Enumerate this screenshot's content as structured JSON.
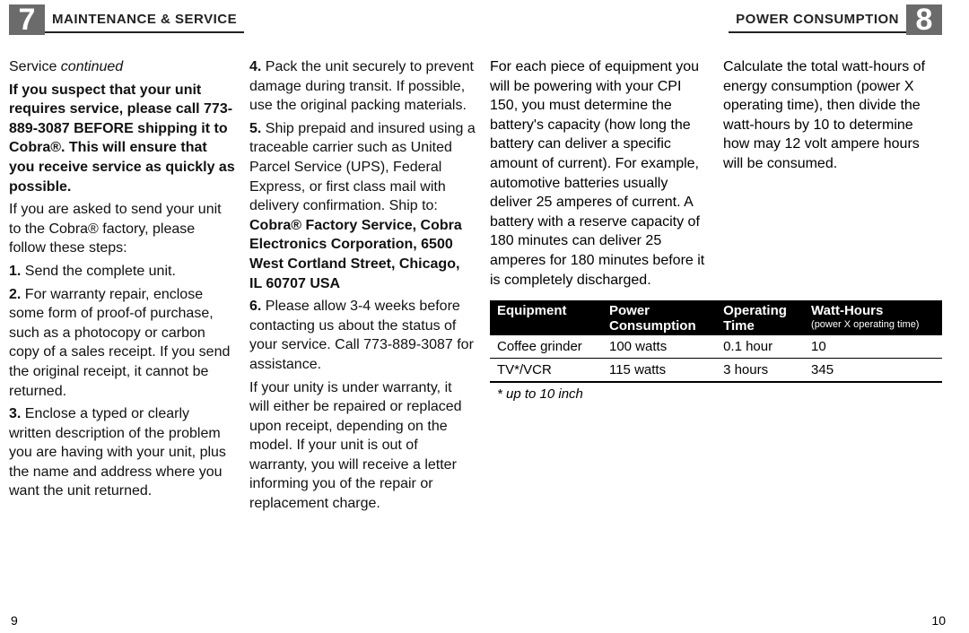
{
  "header": {
    "left_num": "7",
    "left_label": "MAINTENANCE & SERVICE",
    "right_label": "POWER CONSUMPTION",
    "right_num": "8"
  },
  "col1": {
    "subhead_a": "Service ",
    "subhead_b": "continued",
    "p1": "If you suspect that your unit requires service, please call 773-889-3087 BEFORE shipping it to Cobra®. This will ensure that you receive service as quickly as possible.",
    "p2": "If you are asked to send your unit to the Cobra® factory, please follow these steps:",
    "p3": "1. Send the complete unit.",
    "p4": "2. For warranty repair, enclose some form of proof-of purchase, such as a photocopy or carbon copy of a sales receipt. If you send the original receipt, it cannot be returned.",
    "p5": "3. Enclose a typed or clearly written description of the problem you are having with your unit, plus the name and address where you want the unit returned."
  },
  "col2": {
    "p1": "4. Pack the unit securely to prevent damage during transit. If possible, use the original packing materials.",
    "p2a": "5. Ship prepaid and insured using a traceable carrier such as United Parcel Service (UPS), Federal Express, or first class mail with delivery confirmation. Ship to: ",
    "p2b": "Cobra® Factory Service, Cobra Electronics Corporation, 6500 West Cortland Street, Chicago, IL 60707 USA",
    "p3": "6. Please allow 3-4 weeks before contacting us about the status of your service. Call 773-889-3087 for assistance.",
    "p4": "If your unity is under warranty, it will either be repaired or replaced upon receipt, depending on the model. If your unit is out of warranty, you will receive a letter informing you of the repair or replacement charge."
  },
  "col3": {
    "p1": "For each piece of equipment you will be powering with your CPI 150, you must determine the battery's capacity (how long the battery can deliver a specific amount of current). For example, automotive batteries usually deliver 25 amperes of current. A battery with a reserve capacity of 180 minutes can deliver 25 amperes for 180 minutes before it is completely discharged."
  },
  "col4": {
    "p1": "Calculate the total watt-hours of energy consumption (power X operating time), then divide the watt-hours by 10 to determine how may 12 volt ampere hours will be consumed."
  },
  "table": {
    "h1": "Equipment",
    "h2": "Power Consumption",
    "h3": "Operating Time",
    "h4": "Watt-Hours",
    "h4sub": "(power X operating time)",
    "rows": [
      {
        "c1": "Coffee grinder",
        "c2": "100 watts",
        "c3": "0.1 hour",
        "c4": "10"
      },
      {
        "c1": "TV*/VCR",
        "c2": "115 watts",
        "c3": "3 hours",
        "c4": "345"
      }
    ],
    "note": "* up to 10 inch"
  },
  "pagenum_left": "9",
  "pagenum_right": "10"
}
